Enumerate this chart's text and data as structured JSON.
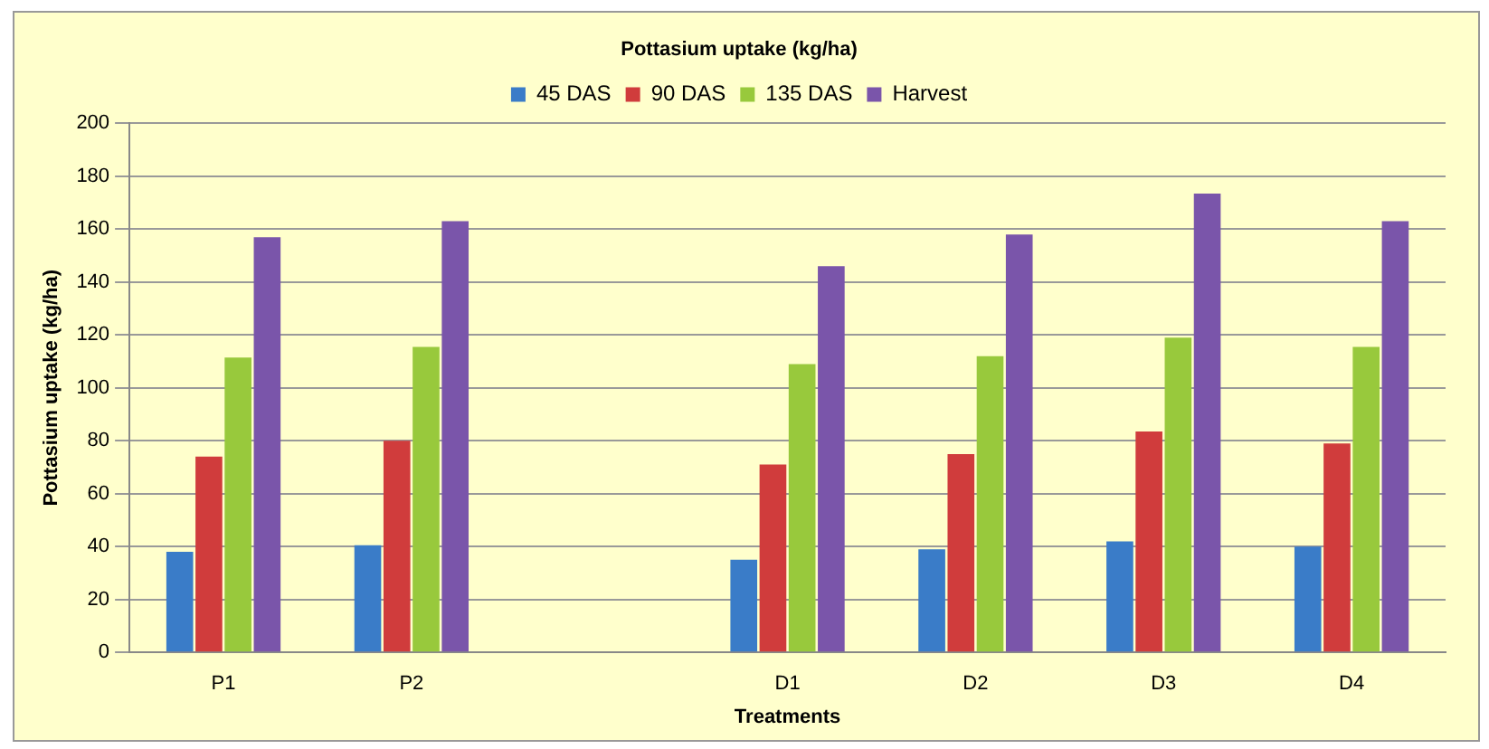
{
  "chart_data": {
    "type": "bar",
    "title": "Pottasium uptake (kg/ha)",
    "xlabel": "Treatments",
    "ylabel": "Pottasium uptake (kg/ha)",
    "categories": [
      "P1",
      "P2",
      null,
      "D1",
      "D2",
      "D3",
      "D4"
    ],
    "series": [
      {
        "name": "45 DAS",
        "color": "#3a7cc8",
        "values": [
          38,
          40.5,
          null,
          35,
          39,
          42,
          40
        ]
      },
      {
        "name": "90 DAS",
        "color": "#d03c3c",
        "values": [
          74,
          80,
          null,
          71,
          75,
          83.5,
          79
        ]
      },
      {
        "name": "135 DAS",
        "color": "#98c93c",
        "values": [
          111.5,
          115.5,
          null,
          109,
          112,
          119,
          115.5
        ]
      },
      {
        "name": "Harvest",
        "color": "#7a55aa",
        "values": [
          157,
          163,
          null,
          146,
          158,
          173.5,
          163
        ]
      }
    ],
    "ylim": [
      0,
      200
    ],
    "yticks": [
      0,
      20,
      40,
      60,
      80,
      100,
      120,
      140,
      160,
      180,
      200
    ],
    "grid": "y",
    "legend": "top"
  }
}
